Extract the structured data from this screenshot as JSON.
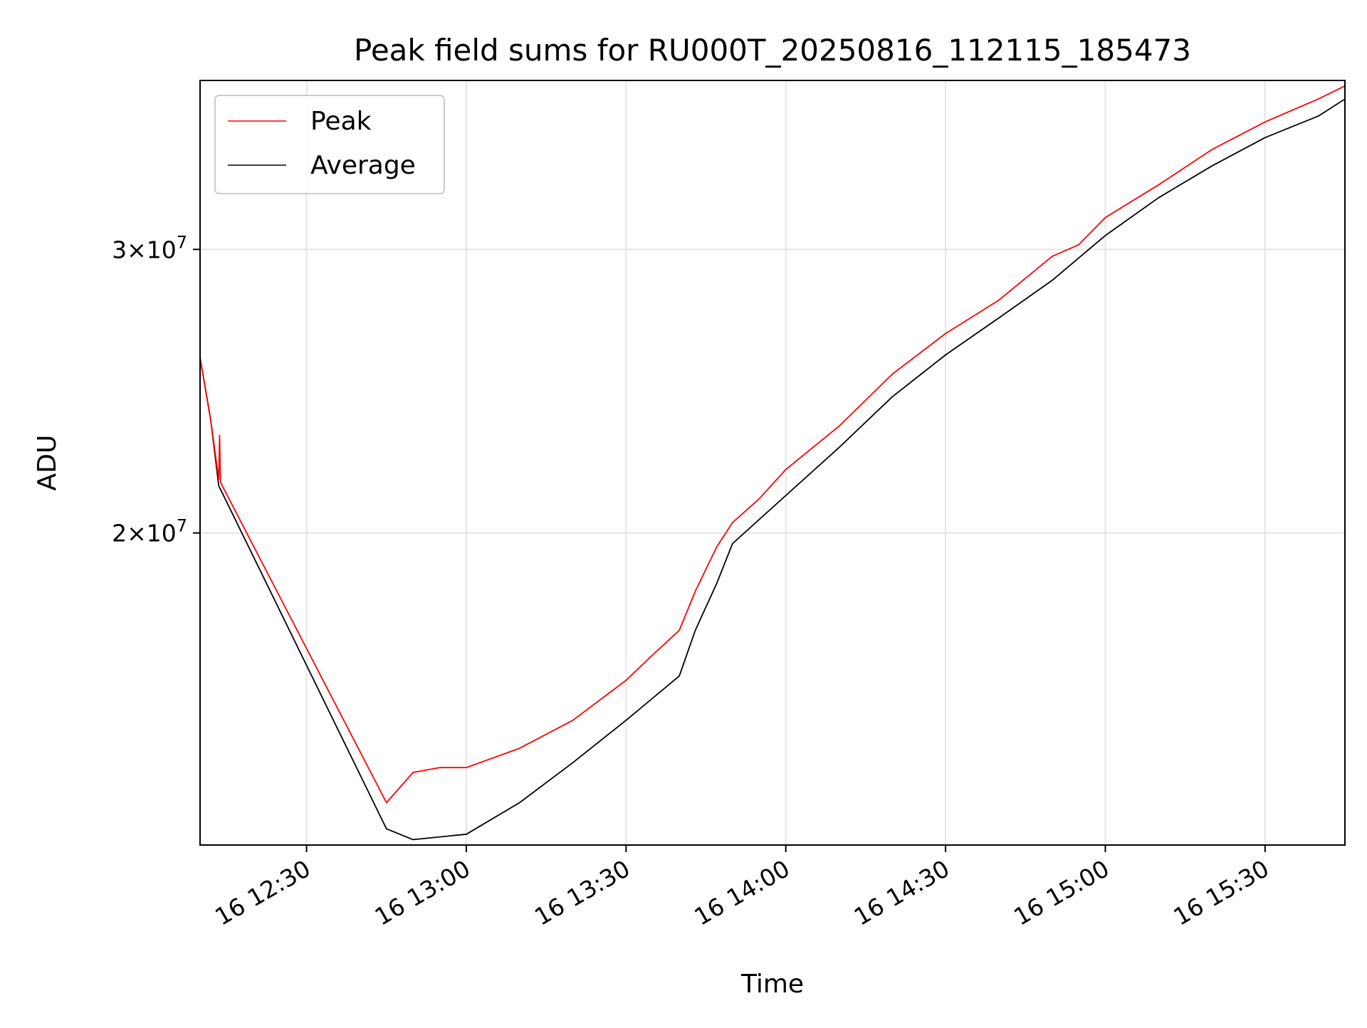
{
  "chart_data": {
    "type": "line",
    "title": "Peak field sums for RU000T_20250816_112115_185473",
    "xlabel": "Time",
    "ylabel": "ADU",
    "yscale": "log",
    "grid": true,
    "legend_position": "upper left",
    "x_domain": [
      "2025-08-16T12:10:00",
      "2025-08-16T15:45:00"
    ],
    "ylim": [
      12800000,
      38200000
    ],
    "x_ticks": [
      {
        "value": "2025-08-16T12:30:00",
        "label": "16 12:30"
      },
      {
        "value": "2025-08-16T13:00:00",
        "label": "16 13:00"
      },
      {
        "value": "2025-08-16T13:30:00",
        "label": "16 13:30"
      },
      {
        "value": "2025-08-16T14:00:00",
        "label": "16 14:00"
      },
      {
        "value": "2025-08-16T14:30:00",
        "label": "16 14:30"
      },
      {
        "value": "2025-08-16T15:00:00",
        "label": "16 15:00"
      },
      {
        "value": "2025-08-16T15:30:00",
        "label": "16 15:30"
      }
    ],
    "y_ticks": [
      {
        "value": 20000000,
        "base": "2",
        "exponent": "7"
      },
      {
        "value": 30000000,
        "base": "3",
        "exponent": "7"
      }
    ],
    "series": [
      {
        "name": "Peak",
        "color": "#ff0000",
        "points": [
          [
            "2025-08-16T12:10:00",
            25700000
          ],
          [
            "2025-08-16T12:12:00",
            23500000
          ],
          [
            "2025-08-16T12:13:30",
            21600000
          ],
          [
            "2025-08-16T12:13:40",
            23000000
          ],
          [
            "2025-08-16T12:13:50",
            21500000
          ],
          [
            "2025-08-16T12:45:00",
            13600000
          ],
          [
            "2025-08-16T12:50:00",
            14200000
          ],
          [
            "2025-08-16T12:55:00",
            14300000
          ],
          [
            "2025-08-16T13:00:00",
            14300000
          ],
          [
            "2025-08-16T13:10:00",
            14700000
          ],
          [
            "2025-08-16T13:20:00",
            15300000
          ],
          [
            "2025-08-16T13:30:00",
            16200000
          ],
          [
            "2025-08-16T13:35:00",
            16800000
          ],
          [
            "2025-08-16T13:40:00",
            17400000
          ],
          [
            "2025-08-16T13:43:00",
            18400000
          ],
          [
            "2025-08-16T13:47:00",
            19600000
          ],
          [
            "2025-08-16T13:50:00",
            20300000
          ],
          [
            "2025-08-16T13:55:00",
            21000000
          ],
          [
            "2025-08-16T14:00:00",
            21900000
          ],
          [
            "2025-08-16T14:10:00",
            23300000
          ],
          [
            "2025-08-16T14:20:00",
            25100000
          ],
          [
            "2025-08-16T14:30:00",
            26600000
          ],
          [
            "2025-08-16T14:40:00",
            27900000
          ],
          [
            "2025-08-16T14:50:00",
            29700000
          ],
          [
            "2025-08-16T14:55:00",
            30200000
          ],
          [
            "2025-08-16T15:00:00",
            31400000
          ],
          [
            "2025-08-16T15:10:00",
            32900000
          ],
          [
            "2025-08-16T15:20:00",
            34600000
          ],
          [
            "2025-08-16T15:30:00",
            36000000
          ],
          [
            "2025-08-16T15:40:00",
            37200000
          ],
          [
            "2025-08-16T15:45:00",
            37900000
          ]
        ]
      },
      {
        "name": "Average",
        "color": "#000000",
        "points": [
          [
            "2025-08-16T12:10:00",
            25700000
          ],
          [
            "2025-08-16T12:12:00",
            23500000
          ],
          [
            "2025-08-16T12:13:30",
            21400000
          ],
          [
            "2025-08-16T12:45:00",
            13100000
          ],
          [
            "2025-08-16T12:50:00",
            12900000
          ],
          [
            "2025-08-16T13:00:00",
            13000000
          ],
          [
            "2025-08-16T13:10:00",
            13600000
          ],
          [
            "2025-08-16T13:20:00",
            14400000
          ],
          [
            "2025-08-16T13:30:00",
            15300000
          ],
          [
            "2025-08-16T13:40:00",
            16300000
          ],
          [
            "2025-08-16T13:43:00",
            17400000
          ],
          [
            "2025-08-16T13:47:00",
            18600000
          ],
          [
            "2025-08-16T13:50:00",
            19700000
          ],
          [
            "2025-08-16T14:00:00",
            21100000
          ],
          [
            "2025-08-16T14:10:00",
            22600000
          ],
          [
            "2025-08-16T14:20:00",
            24300000
          ],
          [
            "2025-08-16T14:30:00",
            25800000
          ],
          [
            "2025-08-16T14:40:00",
            27200000
          ],
          [
            "2025-08-16T14:50:00",
            28700000
          ],
          [
            "2025-08-16T15:00:00",
            30600000
          ],
          [
            "2025-08-16T15:10:00",
            32300000
          ],
          [
            "2025-08-16T15:20:00",
            33800000
          ],
          [
            "2025-08-16T15:30:00",
            35200000
          ],
          [
            "2025-08-16T15:40:00",
            36300000
          ],
          [
            "2025-08-16T15:45:00",
            37200000
          ]
        ]
      }
    ]
  }
}
